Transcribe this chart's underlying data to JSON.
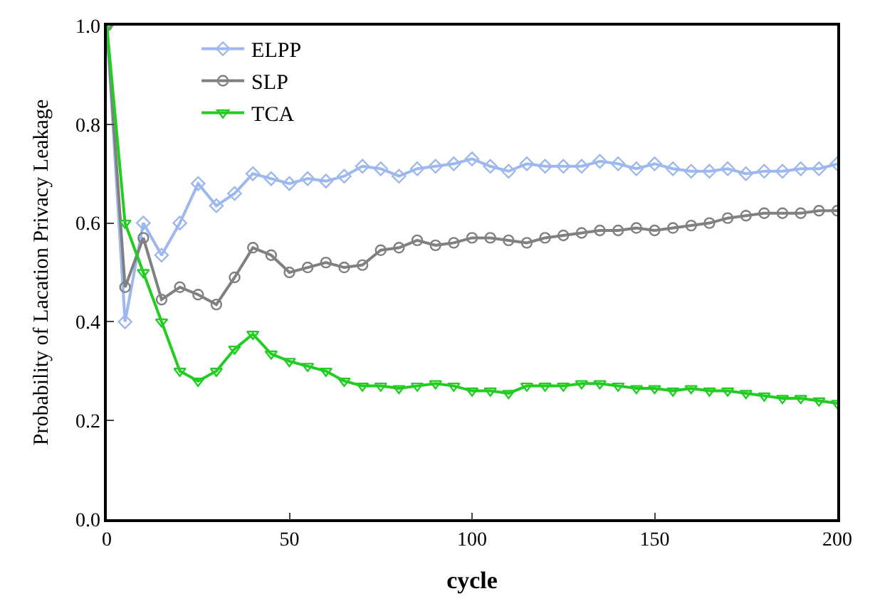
{
  "chart_data": {
    "type": "line",
    "xlabel": "cycle",
    "ylabel": "Probability of Lacation Privacy Leakage",
    "x": [
      0,
      5,
      10,
      15,
      20,
      25,
      30,
      35,
      40,
      45,
      50,
      55,
      60,
      65,
      70,
      75,
      80,
      85,
      90,
      95,
      100,
      105,
      110,
      115,
      120,
      125,
      130,
      135,
      140,
      145,
      150,
      155,
      160,
      165,
      170,
      175,
      180,
      185,
      190,
      195,
      200
    ],
    "series": [
      {
        "name": "ELPP",
        "color": "#9db8ee",
        "marker": "diamond",
        "values": [
          1.0,
          0.4,
          0.6,
          0.535,
          0.6,
          0.68,
          0.635,
          0.66,
          0.7,
          0.69,
          0.68,
          0.69,
          0.685,
          0.695,
          0.715,
          0.71,
          0.695,
          0.71,
          0.715,
          0.72,
          0.73,
          0.715,
          0.705,
          0.72,
          0.715,
          0.715,
          0.715,
          0.725,
          0.72,
          0.71,
          0.72,
          0.71,
          0.705,
          0.705,
          0.71,
          0.7,
          0.705,
          0.705,
          0.71,
          0.71,
          0.72
        ]
      },
      {
        "name": "SLP",
        "color": "#808080",
        "marker": "circle",
        "values": [
          1.0,
          0.47,
          0.57,
          0.445,
          0.47,
          0.455,
          0.435,
          0.49,
          0.55,
          0.535,
          0.5,
          0.51,
          0.52,
          0.51,
          0.515,
          0.545,
          0.55,
          0.565,
          0.555,
          0.56,
          0.57,
          0.57,
          0.565,
          0.56,
          0.57,
          0.575,
          0.58,
          0.585,
          0.585,
          0.59,
          0.585,
          0.59,
          0.595,
          0.6,
          0.61,
          0.615,
          0.62,
          0.62,
          0.62,
          0.625,
          0.625
        ]
      },
      {
        "name": "TCA",
        "color": "#22cc22",
        "marker": "triangle",
        "values": [
          1.0,
          0.6,
          0.5,
          0.4,
          0.3,
          0.28,
          0.3,
          0.345,
          0.375,
          0.335,
          0.32,
          0.31,
          0.3,
          0.28,
          0.27,
          0.27,
          0.265,
          0.27,
          0.275,
          0.27,
          0.26,
          0.26,
          0.255,
          0.27,
          0.27,
          0.27,
          0.275,
          0.275,
          0.27,
          0.265,
          0.265,
          0.26,
          0.265,
          0.26,
          0.26,
          0.255,
          0.25,
          0.245,
          0.245,
          0.24,
          0.235
        ]
      }
    ],
    "xlim": [
      0,
      200
    ],
    "xticks": [
      0,
      50,
      100,
      150,
      200
    ],
    "ylim": [
      0,
      1
    ],
    "yticks": [
      {
        "value": 0,
        "label": "0.0"
      },
      {
        "value": 0.2,
        "label": "0.2"
      },
      {
        "value": 0.4,
        "label": "0.4"
      },
      {
        "value": 0.6,
        "label": "0.6"
      },
      {
        "value": 0.8,
        "label": "0.8"
      },
      {
        "value": 1,
        "label": "1.0"
      }
    ],
    "legend": "top left",
    "line_style": "solid"
  }
}
